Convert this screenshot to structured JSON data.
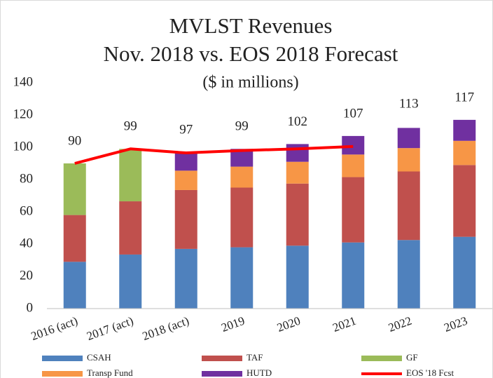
{
  "chart_data": {
    "type": "stacked-bar-line",
    "title": "MVLST Revenues",
    "subtitle": "Nov. 2018 vs. EOS 2018 Forecast",
    "unit_label": "($ in millions)",
    "categories": [
      "2016 (act)",
      "2017 (act)",
      "2018 (act)",
      "2019",
      "2020",
      "2021",
      "2022",
      "2023"
    ],
    "series": [
      {
        "name": "CSAH",
        "color": "#4f81bd",
        "values": [
          29,
          33.5,
          37,
          38,
          39,
          41,
          42.5,
          44.5
        ]
      },
      {
        "name": "TAF",
        "color": "#c0504d",
        "values": [
          29,
          33,
          36.5,
          37,
          38.5,
          40.5,
          42.5,
          44.5
        ]
      },
      {
        "name": "GF",
        "color": "#9bbb59",
        "values": [
          32,
          32.5,
          null,
          null,
          null,
          null,
          null,
          null
        ]
      },
      {
        "name": "Transp Fund",
        "color": "#f79646",
        "values": [
          null,
          null,
          12,
          13,
          13.5,
          14,
          14.5,
          15
        ]
      },
      {
        "name": "HUTD",
        "color": "#7030a0",
        "values": [
          null,
          null,
          11.5,
          11,
          11,
          11.5,
          12.5,
          13
        ]
      }
    ],
    "line": {
      "name": "EOS '18 Fcst",
      "color": "#ff0000",
      "values": [
        90,
        99,
        96.5,
        98,
        99,
        100.5,
        null,
        null
      ]
    },
    "totals": [
      90,
      99,
      97,
      99,
      102,
      107,
      113,
      117
    ],
    "ylim": [
      0,
      140
    ],
    "yticks": [
      0,
      20,
      40,
      60,
      80,
      100,
      120,
      140
    ],
    "grid": false
  }
}
